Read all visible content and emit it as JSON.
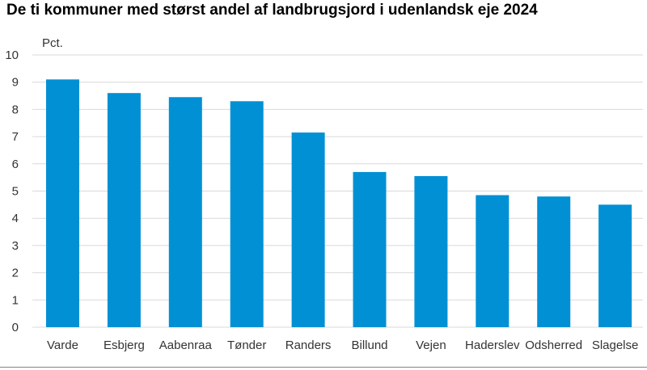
{
  "chart_data": {
    "type": "bar",
    "title": "De ti kommuner med størst andel af landbrugsjord i udenlandsk eje 2024",
    "ylabel": "Pct.",
    "xlabel": "",
    "categories": [
      "Varde",
      "Esbjerg",
      "Aabenraa",
      "Tønder",
      "Randers",
      "Billund",
      "Vejen",
      "Haderslev",
      "Odsherred",
      "Slagelse"
    ],
    "values": [
      9.1,
      8.6,
      8.45,
      8.3,
      7.15,
      5.7,
      5.55,
      4.85,
      4.8,
      4.5
    ],
    "ylim": [
      0,
      10
    ],
    "yticks": [
      "0",
      "1",
      "2",
      "3",
      "4",
      "5",
      "6",
      "7",
      "8",
      "9",
      "10"
    ],
    "grid": true,
    "legend": "none",
    "bar_color": "#0190d4",
    "grid_color": "#d9d9d9"
  }
}
